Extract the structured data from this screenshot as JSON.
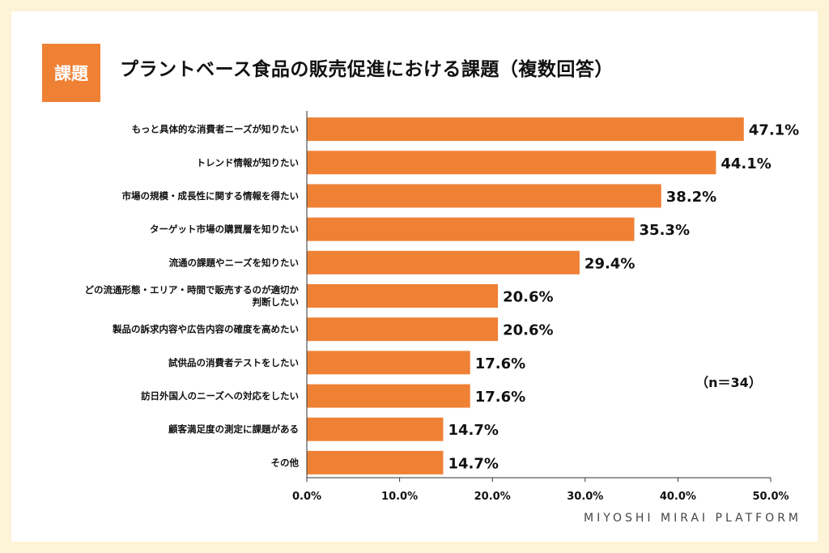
{
  "tag_label": "課題",
  "title": "プラントベース食品の販売促進における課題（複数回答）",
  "sample_note": "（n＝34）",
  "footer": "MIYOSHI MIRAI PLATFORM",
  "colors": {
    "bar": "#ef8135",
    "background": "#fdf3d6",
    "tag": "#ef8135"
  },
  "chart_data": {
    "type": "bar",
    "orientation": "horizontal",
    "categories": [
      [
        "もっと具体的な消費者ニーズが知りたい"
      ],
      [
        "トレンド情報が知りたい"
      ],
      [
        "市場の規模・成長性に関する情報を得たい"
      ],
      [
        "ターゲット市場の購買層を知りたい"
      ],
      [
        "流通の課題やニーズを知りたい"
      ],
      [
        "どの流通形態・エリア・時間で販売するのが適切か",
        "判断したい"
      ],
      [
        "製品の訴求内容や広告内容の確度を高めたい"
      ],
      [
        "試供品の消費者テストをしたい"
      ],
      [
        "訪日外国人のニーズへの対応をしたい"
      ],
      [
        "顧客満足度の測定に課題がある"
      ],
      [
        "その他"
      ]
    ],
    "values": [
      47.1,
      44.1,
      38.2,
      35.3,
      29.4,
      20.6,
      20.6,
      17.6,
      17.6,
      14.7,
      14.7
    ],
    "value_labels": [
      "47.1%",
      "44.1%",
      "38.2%",
      "35.3%",
      "29.4%",
      "20.6%",
      "20.6%",
      "17.6%",
      "17.6%",
      "14.7%",
      "14.7%"
    ],
    "xlim": [
      0,
      50
    ],
    "xticks": [
      0,
      10,
      20,
      30,
      40,
      50
    ],
    "xtick_labels": [
      "0.0%",
      "10.0%",
      "20.0%",
      "30.0%",
      "40.0%",
      "50.0%"
    ],
    "grid": false,
    "legend": false
  }
}
